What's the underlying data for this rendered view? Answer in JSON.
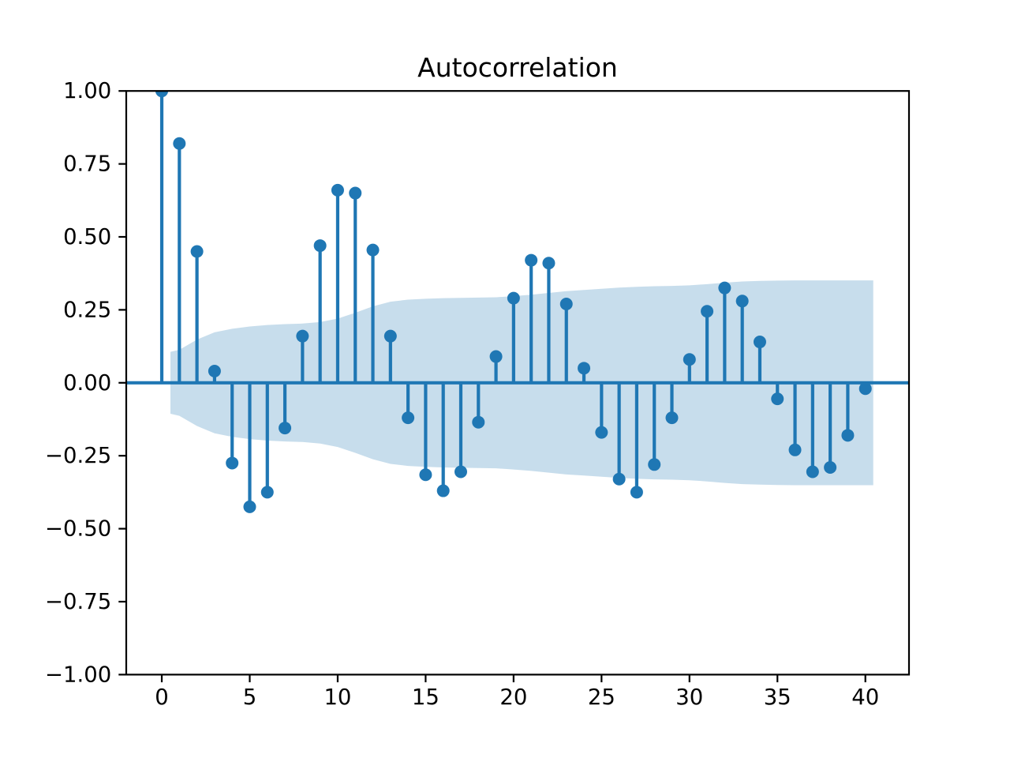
{
  "chart_data": {
    "type": "stem",
    "title": "Autocorrelation",
    "xlabel": "",
    "ylabel": "",
    "lags": [
      0,
      1,
      2,
      3,
      4,
      5,
      6,
      7,
      8,
      9,
      10,
      11,
      12,
      13,
      14,
      15,
      16,
      17,
      18,
      19,
      20,
      21,
      22,
      23,
      24,
      25,
      26,
      27,
      28,
      29,
      30,
      31,
      32,
      33,
      34,
      35,
      36,
      37,
      38,
      39,
      40
    ],
    "acf": [
      1.0,
      0.82,
      0.45,
      0.04,
      -0.275,
      -0.425,
      -0.375,
      -0.155,
      0.16,
      0.47,
      0.66,
      0.65,
      0.455,
      0.16,
      -0.12,
      -0.315,
      -0.37,
      -0.305,
      -0.135,
      0.09,
      0.29,
      0.42,
      0.41,
      0.27,
      0.05,
      -0.17,
      -0.33,
      -0.375,
      -0.28,
      -0.12,
      0.08,
      0.245,
      0.325,
      0.28,
      0.14,
      -0.055,
      -0.23,
      -0.305,
      -0.29,
      -0.18,
      -0.02
    ],
    "confidence_band": {
      "lags": [
        1,
        2,
        3,
        4,
        5,
        6,
        7,
        8,
        9,
        10,
        11,
        12,
        13,
        14,
        15,
        16,
        17,
        18,
        19,
        20,
        21,
        22,
        23,
        24,
        25,
        26,
        27,
        28,
        29,
        30,
        31,
        32,
        33,
        34,
        35,
        36,
        37,
        38,
        39,
        40
      ],
      "upper": [
        0.113,
        0.148,
        0.173,
        0.185,
        0.193,
        0.198,
        0.201,
        0.203,
        0.208,
        0.22,
        0.24,
        0.262,
        0.278,
        0.285,
        0.288,
        0.29,
        0.291,
        0.292,
        0.293,
        0.297,
        0.302,
        0.308,
        0.314,
        0.318,
        0.322,
        0.326,
        0.329,
        0.331,
        0.332,
        0.334,
        0.338,
        0.343,
        0.347,
        0.349,
        0.35,
        0.351,
        0.351,
        0.351,
        0.351,
        0.351
      ],
      "lower": [
        -0.113,
        -0.148,
        -0.173,
        -0.185,
        -0.193,
        -0.198,
        -0.201,
        -0.203,
        -0.208,
        -0.22,
        -0.24,
        -0.262,
        -0.278,
        -0.285,
        -0.288,
        -0.29,
        -0.291,
        -0.292,
        -0.293,
        -0.297,
        -0.302,
        -0.308,
        -0.314,
        -0.318,
        -0.322,
        -0.326,
        -0.329,
        -0.331,
        -0.332,
        -0.334,
        -0.338,
        -0.343,
        -0.347,
        -0.349,
        -0.35,
        -0.351,
        -0.351,
        -0.351,
        -0.351,
        -0.351
      ],
      "x_start": 0.49,
      "x_end": 40.45,
      "start_upper": 0.106,
      "start_lower": -0.106
    },
    "axes": {
      "xlim": [
        -2.02,
        42.48
      ],
      "ylim": [
        -1.0,
        1.0
      ],
      "xticks": {
        "values": [
          0,
          5,
          10,
          15,
          20,
          25,
          30,
          35,
          40
        ],
        "labels": [
          "0",
          "5",
          "10",
          "15",
          "20",
          "25",
          "30",
          "35",
          "40"
        ]
      },
      "yticks": {
        "values": [
          1.0,
          0.75,
          0.5,
          0.25,
          0.0,
          -0.25,
          -0.5,
          -0.75,
          -1.0
        ],
        "labels": [
          "1.00",
          "0.75",
          "0.50",
          "0.25",
          "0.00",
          "−0.25",
          "−0.50",
          "−0.75",
          "−1.00"
        ]
      },
      "grid": false,
      "legend": "none"
    },
    "colors": {
      "stem": "#1f77b4",
      "marker": "#1f77b4",
      "zero_line": "#1f77b4",
      "band": "#1f77b4",
      "band_alpha": 0.25,
      "spine": "#000000",
      "tick_label": "#000000",
      "title": "#000000",
      "background": "#ffffff"
    }
  }
}
